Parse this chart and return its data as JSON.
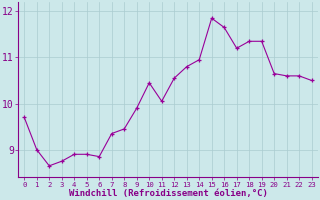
{
  "x": [
    0,
    1,
    2,
    3,
    4,
    5,
    6,
    7,
    8,
    9,
    10,
    11,
    12,
    13,
    14,
    15,
    16,
    17,
    18,
    19,
    20,
    21,
    22,
    23
  ],
  "y": [
    9.7,
    9.0,
    8.65,
    8.75,
    8.9,
    8.9,
    8.85,
    9.35,
    9.45,
    9.9,
    10.45,
    10.05,
    10.55,
    10.8,
    10.95,
    11.85,
    11.65,
    11.2,
    11.35,
    11.35,
    10.65,
    10.6,
    10.6,
    10.5
  ],
  "line_color": "#990099",
  "marker": "+",
  "marker_size": 3,
  "bg_color": "#cce8ea",
  "grid_color": "#aaccd0",
  "xlabel": "Windchill (Refroidissement éolien,°C)",
  "xlabel_color": "#880088",
  "tick_color": "#880088",
  "spine_color": "#880088",
  "ylim": [
    8.4,
    12.2
  ],
  "xlim": [
    -0.5,
    23.5
  ],
  "yticks": [
    9,
    10,
    11,
    12
  ],
  "xticks": [
    0,
    1,
    2,
    3,
    4,
    5,
    6,
    7,
    8,
    9,
    10,
    11,
    12,
    13,
    14,
    15,
    16,
    17,
    18,
    19,
    20,
    21,
    22,
    23
  ]
}
